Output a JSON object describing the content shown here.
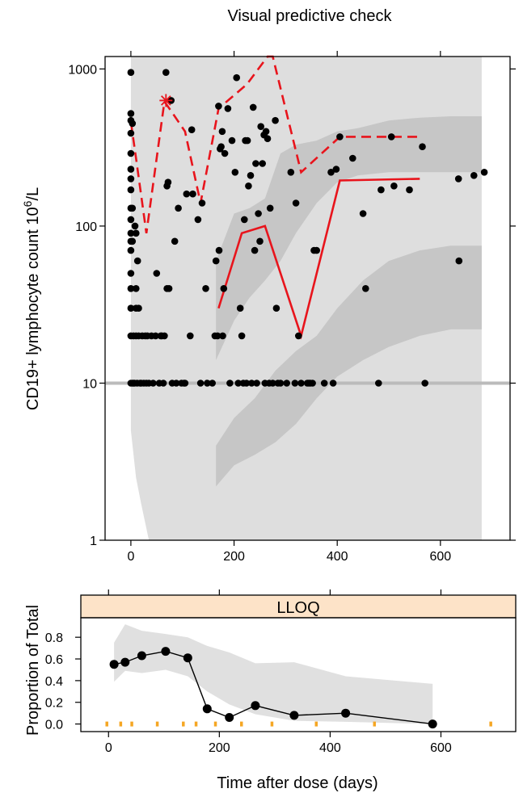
{
  "chart_data": [
    {
      "type": "scatter",
      "title": "Visual predictive check",
      "ylabel": "CD19+ lymphocyte count 10^6/L",
      "ylabel_parts": {
        "main": "CD19+ lymphocyte count 10",
        "sup": "6",
        "tail": "/L"
      },
      "xlim": [
        -50,
        735
      ],
      "ylim": [
        1,
        1200
      ],
      "yscale": "log",
      "x_ticks": [
        0,
        200,
        400,
        600
      ],
      "y_ticks": [
        {
          "value": 1,
          "label": "1"
        },
        {
          "value": 10,
          "label": "10"
        },
        {
          "value": 100,
          "label": "100"
        },
        {
          "value": 1000,
          "label": "1000"
        }
      ],
      "lloq": 10,
      "colors": {
        "observed": "#000000",
        "percentile_lines": "#e8141c",
        "outer_ci": "#dedede",
        "inner_ci": "#c6c6c6",
        "lloq_line": "#bbbbbb"
      },
      "observed": [
        [
          0,
          950
        ],
        [
          0,
          520
        ],
        [
          0,
          470
        ],
        [
          0,
          390
        ],
        [
          0,
          290
        ],
        [
          0,
          230
        ],
        [
          0,
          200
        ],
        [
          0,
          170
        ],
        [
          0,
          130
        ],
        [
          0,
          110
        ],
        [
          0,
          90
        ],
        [
          0,
          80
        ],
        [
          0,
          70
        ],
        [
          0,
          50
        ],
        [
          0,
          40
        ],
        [
          0,
          30
        ],
        [
          0,
          20
        ],
        [
          0,
          10
        ],
        [
          3,
          450
        ],
        [
          3,
          130
        ],
        [
          3,
          80
        ],
        [
          3,
          10
        ],
        [
          5,
          10
        ],
        [
          5,
          20
        ],
        [
          7,
          10
        ],
        [
          8,
          100
        ],
        [
          10,
          20
        ],
        [
          10,
          30
        ],
        [
          10,
          40
        ],
        [
          10,
          90
        ],
        [
          12,
          10
        ],
        [
          13,
          60
        ],
        [
          15,
          20
        ],
        [
          15,
          30
        ],
        [
          18,
          10
        ],
        [
          20,
          10
        ],
        [
          22,
          20
        ],
        [
          25,
          10
        ],
        [
          28,
          20
        ],
        [
          30,
          10
        ],
        [
          32,
          20
        ],
        [
          35,
          10
        ],
        [
          40,
          20
        ],
        [
          43,
          10
        ],
        [
          48,
          20
        ],
        [
          50,
          50
        ],
        [
          55,
          10
        ],
        [
          58,
          20
        ],
        [
          60,
          20
        ],
        [
          63,
          10
        ],
        [
          65,
          20
        ],
        [
          68,
          950
        ],
        [
          70,
          180
        ],
        [
          70,
          40
        ],
        [
          72,
          190
        ],
        [
          74,
          40
        ],
        [
          78,
          630
        ],
        [
          80,
          10
        ],
        [
          85,
          80
        ],
        [
          88,
          10
        ],
        [
          92,
          130
        ],
        [
          98,
          10
        ],
        [
          103,
          10
        ],
        [
          105,
          10
        ],
        [
          108,
          160
        ],
        [
          115,
          20
        ],
        [
          118,
          410
        ],
        [
          120,
          160
        ],
        [
          130,
          110
        ],
        [
          135,
          10
        ],
        [
          138,
          140
        ],
        [
          145,
          40
        ],
        [
          148,
          10
        ],
        [
          158,
          10
        ],
        [
          163,
          20
        ],
        [
          165,
          60
        ],
        [
          168,
          20
        ],
        [
          170,
          580
        ],
        [
          171,
          70
        ],
        [
          173,
          310
        ],
        [
          175,
          320
        ],
        [
          177,
          400
        ],
        [
          178,
          20
        ],
        [
          180,
          40
        ],
        [
          182,
          290
        ],
        [
          188,
          560
        ],
        [
          192,
          10
        ],
        [
          196,
          350
        ],
        [
          202,
          220
        ],
        [
          205,
          880
        ],
        [
          208,
          10
        ],
        [
          212,
          30
        ],
        [
          215,
          20
        ],
        [
          218,
          10
        ],
        [
          220,
          110
        ],
        [
          222,
          350
        ],
        [
          224,
          10
        ],
        [
          226,
          350
        ],
        [
          228,
          180
        ],
        [
          232,
          210
        ],
        [
          234,
          10
        ],
        [
          237,
          570
        ],
        [
          240,
          70
        ],
        [
          242,
          250
        ],
        [
          244,
          10
        ],
        [
          247,
          120
        ],
        [
          250,
          80
        ],
        [
          252,
          430
        ],
        [
          255,
          250
        ],
        [
          258,
          380
        ],
        [
          260,
          10
        ],
        [
          262,
          400
        ],
        [
          265,
          360
        ],
        [
          268,
          10
        ],
        [
          270,
          130
        ],
        [
          275,
          10
        ],
        [
          280,
          470
        ],
        [
          282,
          30
        ],
        [
          285,
          10
        ],
        [
          290,
          10
        ],
        [
          302,
          10
        ],
        [
          310,
          220
        ],
        [
          318,
          10
        ],
        [
          320,
          140
        ],
        [
          325,
          20
        ],
        [
          330,
          10
        ],
        [
          342,
          10
        ],
        [
          345,
          10
        ],
        [
          348,
          10
        ],
        [
          352,
          10
        ],
        [
          355,
          70
        ],
        [
          360,
          70
        ],
        [
          375,
          10
        ],
        [
          388,
          220
        ],
        [
          392,
          10
        ],
        [
          398,
          230
        ],
        [
          405,
          370
        ],
        [
          430,
          270
        ],
        [
          450,
          120
        ],
        [
          455,
          40
        ],
        [
          480,
          10
        ],
        [
          485,
          170
        ],
        [
          505,
          370
        ],
        [
          510,
          180
        ],
        [
          540,
          170
        ],
        [
          565,
          320
        ],
        [
          570,
          10
        ],
        [
          635,
          200
        ],
        [
          636,
          60
        ],
        [
          665,
          210
        ],
        [
          685,
          220
        ]
      ],
      "star_point": {
        "x": 68,
        "y": 630
      },
      "upper_percentile": {
        "x": [
          0,
          10,
          30,
          65,
          78,
          105,
          135,
          170,
          225,
          265,
          275,
          330,
          405,
          560
        ],
        "y": [
          460,
          270,
          90,
          620,
          540,
          400,
          140,
          560,
          800,
          1300,
          1300,
          220,
          370,
          370
        ]
      },
      "median_percentile": {
        "x": [
          170,
          215,
          260,
          330,
          405,
          560
        ],
        "y": [
          30,
          90,
          100,
          20,
          195,
          200
        ]
      },
      "outer_band": {
        "x": [
          0,
          10,
          20,
          35,
          70,
          110,
          150,
          190,
          230,
          260,
          290,
          320,
          350,
          380,
          410,
          450,
          500,
          560,
          620,
          680
        ],
        "upper": [
          1200,
          1200,
          1200,
          1200,
          1200,
          1200,
          1200,
          1200,
          1200,
          1200,
          1200,
          1200,
          1200,
          1200,
          1200,
          1200,
          1200,
          1200,
          1200,
          1200
        ],
        "lower": [
          5,
          2.5,
          1.7,
          1,
          1,
          1,
          1,
          1,
          1,
          1,
          1,
          1,
          1,
          1,
          1,
          1,
          1,
          1,
          1,
          1
        ]
      },
      "inner_bands": [
        {
          "x": [
            165,
            200,
            230,
            260,
            290,
            320,
            360,
            400,
            440,
            500,
            560,
            620,
            680
          ],
          "upper": [
            60,
            120,
            130,
            150,
            290,
            330,
            350,
            400,
            420,
            470,
            490,
            500,
            500
          ],
          "lower": [
            14,
            25,
            35,
            45,
            60,
            90,
            140,
            190,
            210,
            220,
            220,
            220,
            220
          ]
        },
        {
          "x": [
            165,
            200,
            240,
            280,
            320,
            360,
            400,
            450,
            500,
            560,
            620,
            680
          ],
          "upper": [
            4,
            6,
            8,
            12,
            16,
            20,
            30,
            45,
            60,
            70,
            75,
            75
          ],
          "lower": [
            2.2,
            3,
            3.5,
            4.2,
            5.5,
            8,
            11,
            14,
            17,
            20,
            22,
            22
          ]
        }
      ]
    },
    {
      "type": "line",
      "strip_label": "LLOQ",
      "xlabel": "Time after dose (days)",
      "ylabel": "Proportion of Total",
      "xlim": [
        -50,
        735
      ],
      "ylim": [
        -0.07,
        0.98
      ],
      "x_ticks": [
        0,
        200,
        400,
        600
      ],
      "y_ticks": [
        0.0,
        0.2,
        0.4,
        0.6,
        0.8
      ],
      "y_tick_labels": [
        "0.0",
        "0.2",
        "0.4",
        "0.6",
        "0.8"
      ],
      "colors": {
        "observed": "#000000",
        "band": "#e0e0e0",
        "bin_marks": "#f5a623",
        "strip": "#fde3c8"
      },
      "observed": {
        "x": [
          10,
          30,
          60,
          103,
          143,
          178,
          218,
          265,
          335,
          428,
          585
        ],
        "y": [
          0.55,
          0.57,
          0.63,
          0.67,
          0.61,
          0.14,
          0.06,
          0.17,
          0.08,
          0.1,
          0.0
        ]
      },
      "band": {
        "x": [
          10,
          30,
          60,
          103,
          143,
          178,
          218,
          265,
          335,
          428,
          585
        ],
        "upper": [
          0.75,
          0.92,
          0.86,
          0.83,
          0.8,
          0.72,
          0.66,
          0.56,
          0.57,
          0.44,
          0.37
        ],
        "lower": [
          0.39,
          0.49,
          0.47,
          0.5,
          0.44,
          0.3,
          0.18,
          0.09,
          0.03,
          0.02,
          0.0
        ]
      },
      "bin_marks": [
        -3,
        22,
        42,
        88,
        135,
        158,
        193,
        240,
        295,
        375,
        480,
        690
      ]
    }
  ]
}
